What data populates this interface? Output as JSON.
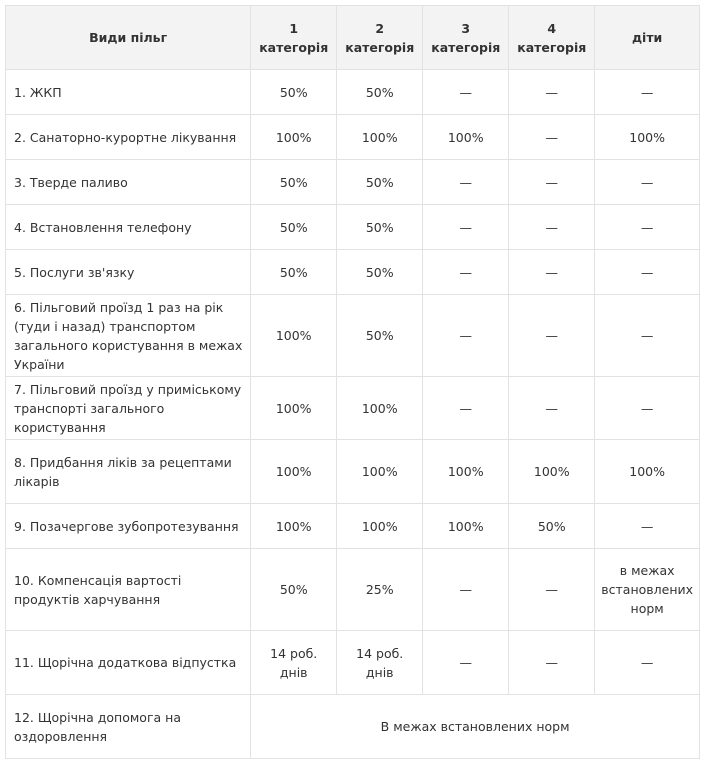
{
  "headers": [
    "Види пільг",
    "1 категорія",
    "2 категорія",
    "3 категорія",
    "4 категорія",
    "діти"
  ],
  "rows": [
    [
      "1. ЖКП",
      "50%",
      "50%",
      "—",
      "—",
      "—"
    ],
    [
      "2. Санаторно-курортне лікування",
      "100%",
      "100%",
      "100%",
      "—",
      "100%"
    ],
    [
      "3. Тверде паливо",
      "50%",
      "50%",
      "—",
      "—",
      "—"
    ],
    [
      "4. Встановлення телефону",
      "50%",
      "50%",
      "—",
      "—",
      "—"
    ],
    [
      "5. Послуги зв'язку",
      "50%",
      "50%",
      "—",
      "—",
      "—"
    ],
    [
      "6. Пільговий проїзд 1 раз на рік (туди і назад) транспортом загального користування в межах України",
      "100%",
      "50%",
      "—",
      "—",
      "—"
    ],
    [
      "7. Пільговий проїзд у приміському транспорті загального користування",
      "100%",
      "100%",
      "—",
      "—",
      "—"
    ],
    [
      "8. Придбання ліків за рецептами лікарів",
      "100%",
      "100%",
      "100%",
      "100%",
      "100%"
    ],
    [
      "9. Позачергове зубопротезування",
      "100%",
      "100%",
      "100%",
      "50%",
      "—"
    ],
    [
      "10. Компенсація вартості продуктів харчування",
      "50%",
      "25%",
      "—",
      "—",
      "в межах встановлених норм"
    ],
    [
      "11. Щорічна додаткова відпустка",
      "14 роб. днів",
      "14 роб. днів",
      "—",
      "—",
      "—"
    ],
    [
      "12. Щорічна допомога на оздоровлення",
      "В межах встановлених норм"
    ]
  ]
}
